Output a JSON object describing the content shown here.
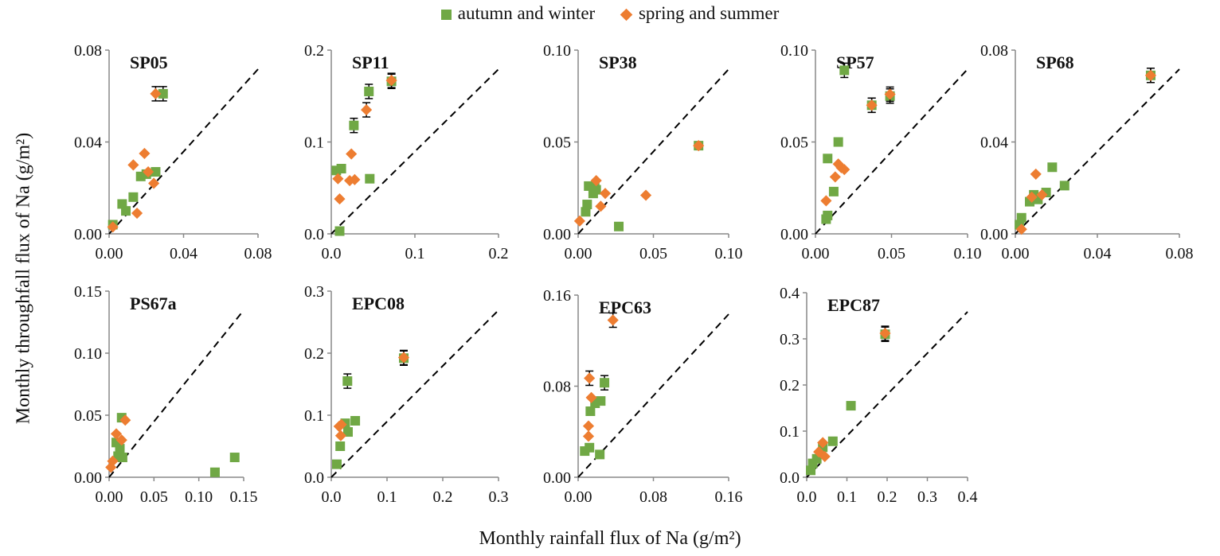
{
  "legend": {
    "autumn": "autumn and winter",
    "spring": "spring and summer"
  },
  "ylabel": "Monthly throughfall flux of Na (g/m²)",
  "xlabel": "Monthly rainfall flux of Na (g/m²)",
  "colors": {
    "autumn": "#70a845",
    "spring": "#ed7d31",
    "reference_line": "#000000"
  },
  "chart_data": [
    {
      "type": "scatter",
      "title": "SP05",
      "xlim": [
        0,
        0.08
      ],
      "ylim": [
        0,
        0.08
      ],
      "xticks": [
        "0.00",
        "0.04",
        "0.08"
      ],
      "yticks": [
        "0.00",
        "0.04",
        "0.08"
      ],
      "reference_line": "1:1 dashed",
      "series": [
        {
          "name": "autumn and winter",
          "points": [
            [
              0.002,
              0.004
            ],
            [
              0.007,
              0.013
            ],
            [
              0.009,
              0.01
            ],
            [
              0.013,
              0.016
            ],
            [
              0.017,
              0.025
            ],
            [
              0.02,
              0.026
            ],
            [
              0.025,
              0.027
            ],
            [
              0.029,
              0.061
            ]
          ]
        },
        {
          "name": "spring and summer",
          "points": [
            [
              0.002,
              0.003
            ],
            [
              0.013,
              0.03
            ],
            [
              0.015,
              0.009
            ],
            [
              0.019,
              0.035
            ],
            [
              0.021,
              0.027
            ],
            [
              0.024,
              0.022
            ],
            [
              0.025,
              0.061
            ]
          ]
        }
      ]
    },
    {
      "type": "scatter",
      "title": "SP11",
      "xlim": [
        0,
        0.2
      ],
      "ylim": [
        0,
        0.2
      ],
      "xticks": [
        "0.0",
        "0.1",
        "0.2"
      ],
      "yticks": [
        "0.0",
        "0.1",
        "0.2"
      ],
      "reference_line": "1:1 dashed",
      "series": [
        {
          "name": "autumn and winter",
          "points": [
            [
              0.006,
              0.069
            ],
            [
              0.012,
              0.071
            ],
            [
              0.01,
              0.003
            ],
            [
              0.027,
              0.118
            ],
            [
              0.045,
              0.155
            ],
            [
              0.046,
              0.06
            ],
            [
              0.072,
              0.166
            ]
          ]
        },
        {
          "name": "spring and summer",
          "points": [
            [
              0.008,
              0.06
            ],
            [
              0.01,
              0.038
            ],
            [
              0.022,
              0.058
            ],
            [
              0.024,
              0.087
            ],
            [
              0.028,
              0.059
            ],
            [
              0.042,
              0.135
            ],
            [
              0.072,
              0.167
            ]
          ]
        }
      ]
    },
    {
      "type": "scatter",
      "title": "SP38",
      "xlim": [
        0,
        0.1
      ],
      "ylim": [
        0,
        0.1
      ],
      "xticks": [
        "0.00",
        "0.05",
        "0.10"
      ],
      "yticks": [
        "0.00",
        "0.05",
        "0.10"
      ],
      "reference_line": "1:1 dashed",
      "series": [
        {
          "name": "autumn and winter",
          "points": [
            [
              0.005,
              0.012
            ],
            [
              0.006,
              0.016
            ],
            [
              0.007,
              0.026
            ],
            [
              0.01,
              0.022
            ],
            [
              0.011,
              0.026
            ],
            [
              0.012,
              0.024
            ],
            [
              0.027,
              0.004
            ],
            [
              0.08,
              0.048
            ]
          ]
        },
        {
          "name": "spring and summer",
          "points": [
            [
              0.001,
              0.007
            ],
            [
              0.012,
              0.029
            ],
            [
              0.015,
              0.015
            ],
            [
              0.018,
              0.022
            ],
            [
              0.045,
              0.021
            ],
            [
              0.08,
              0.048
            ]
          ]
        }
      ]
    },
    {
      "type": "scatter",
      "title": "SP57",
      "xlim": [
        0,
        0.1
      ],
      "ylim": [
        0,
        0.1
      ],
      "xticks": [
        "0.00",
        "0.05",
        "0.10"
      ],
      "yticks": [
        "0.00",
        "0.05",
        "0.10"
      ],
      "reference_line": "1:1 dashed",
      "series": [
        {
          "name": "autumn and winter",
          "points": [
            [
              0.007,
              0.008
            ],
            [
              0.008,
              0.01
            ],
            [
              0.008,
              0.041
            ],
            [
              0.012,
              0.023
            ],
            [
              0.015,
              0.05
            ],
            [
              0.019,
              0.089
            ],
            [
              0.037,
              0.07
            ],
            [
              0.049,
              0.075
            ]
          ]
        },
        {
          "name": "spring and summer",
          "points": [
            [
              0.007,
              0.018
            ],
            [
              0.013,
              0.031
            ],
            [
              0.015,
              0.038
            ],
            [
              0.017,
              0.036
            ],
            [
              0.019,
              0.035
            ],
            [
              0.037,
              0.07
            ],
            [
              0.049,
              0.076
            ]
          ]
        }
      ]
    },
    {
      "type": "scatter",
      "title": "SP68",
      "xlim": [
        0,
        0.08
      ],
      "ylim": [
        0,
        0.08
      ],
      "xticks": [
        "0.00",
        "0.04",
        "0.08"
      ],
      "yticks": [
        "0.00",
        "0.04",
        "0.08"
      ],
      "reference_line": "1:1 dashed",
      "series": [
        {
          "name": "autumn and winter",
          "points": [
            [
              0.002,
              0.004
            ],
            [
              0.003,
              0.007
            ],
            [
              0.007,
              0.014
            ],
            [
              0.009,
              0.017
            ],
            [
              0.011,
              0.015
            ],
            [
              0.015,
              0.018
            ],
            [
              0.018,
              0.029
            ],
            [
              0.024,
              0.021
            ],
            [
              0.066,
              0.069
            ]
          ]
        },
        {
          "name": "spring and summer",
          "points": [
            [
              0.003,
              0.002
            ],
            [
              0.008,
              0.016
            ],
            [
              0.01,
              0.026
            ],
            [
              0.013,
              0.017
            ],
            [
              0.066,
              0.069
            ]
          ]
        }
      ]
    },
    {
      "type": "scatter",
      "title": "PS67a",
      "xlim": [
        0,
        0.15
      ],
      "ylim": [
        0,
        0.15
      ],
      "xticks": [
        "0.00",
        "0.05",
        "0.10",
        "0.15"
      ],
      "yticks": [
        "0.00",
        "0.05",
        "0.10",
        "0.15"
      ],
      "reference_line": "1:1 dashed",
      "series": [
        {
          "name": "autumn and winter",
          "points": [
            [
              0.008,
              0.028
            ],
            [
              0.01,
              0.017
            ],
            [
              0.012,
              0.023
            ],
            [
              0.014,
              0.048
            ],
            [
              0.015,
              0.016
            ],
            [
              0.118,
              0.004
            ],
            [
              0.14,
              0.016
            ]
          ]
        },
        {
          "name": "spring and summer",
          "points": [
            [
              0.002,
              0.008
            ],
            [
              0.004,
              0.013
            ],
            [
              0.008,
              0.035
            ],
            [
              0.014,
              0.03
            ],
            [
              0.018,
              0.046
            ]
          ]
        }
      ]
    },
    {
      "type": "scatter",
      "title": "EPC08",
      "xlim": [
        0,
        0.3
      ],
      "ylim": [
        0,
        0.3
      ],
      "xticks": [
        "0.0",
        "0.1",
        "0.2",
        "0.3"
      ],
      "yticks": [
        "0.0",
        "0.1",
        "0.2",
        "0.3"
      ],
      "reference_line": "1:1 dashed",
      "series": [
        {
          "name": "autumn and winter",
          "points": [
            [
              0.01,
              0.021
            ],
            [
              0.016,
              0.05
            ],
            [
              0.025,
              0.087
            ],
            [
              0.03,
              0.073
            ],
            [
              0.029,
              0.155
            ],
            [
              0.043,
              0.091
            ],
            [
              0.13,
              0.192
            ]
          ]
        },
        {
          "name": "spring and summer",
          "points": [
            [
              0.014,
              0.082
            ],
            [
              0.017,
              0.067
            ],
            [
              0.018,
              0.085
            ],
            [
              0.13,
              0.193
            ]
          ]
        }
      ]
    },
    {
      "type": "scatter",
      "title": "EPC63",
      "xlim": [
        0,
        0.16
      ],
      "ylim": [
        0,
        0.16
      ],
      "xticks": [
        "0.00",
        "0.08",
        "0.16"
      ],
      "yticks": [
        "0.00",
        "0.08",
        "0.16"
      ],
      "reference_line": "1:1 dashed",
      "series": [
        {
          "name": "autumn and winter",
          "points": [
            [
              0.007,
              0.023
            ],
            [
              0.012,
              0.026
            ],
            [
              0.013,
              0.058
            ],
            [
              0.018,
              0.065
            ],
            [
              0.024,
              0.067
            ],
            [
              0.023,
              0.02
            ],
            [
              0.028,
              0.083
            ]
          ]
        },
        {
          "name": "spring and summer",
          "points": [
            [
              0.011,
              0.036
            ],
            [
              0.011,
              0.045
            ],
            [
              0.012,
              0.087
            ],
            [
              0.014,
              0.07
            ],
            [
              0.037,
              0.138
            ]
          ]
        }
      ]
    },
    {
      "type": "scatter",
      "title": "EPC87",
      "xlim": [
        0,
        0.4
      ],
      "ylim": [
        0,
        0.4
      ],
      "xticks": [
        "0.0",
        "0.1",
        "0.2",
        "0.3",
        "0.4"
      ],
      "yticks": [
        "0.0",
        "0.1",
        "0.2",
        "0.3",
        "0.4"
      ],
      "reference_line": "1:1 dashed",
      "series": [
        {
          "name": "autumn and winter",
          "points": [
            [
              0.01,
              0.015
            ],
            [
              0.015,
              0.03
            ],
            [
              0.025,
              0.04
            ],
            [
              0.04,
              0.065
            ],
            [
              0.065,
              0.078
            ],
            [
              0.11,
              0.155
            ],
            [
              0.195,
              0.31
            ]
          ]
        },
        {
          "name": "spring and summer",
          "points": [
            [
              0.03,
              0.055
            ],
            [
              0.04,
              0.075
            ],
            [
              0.045,
              0.045
            ],
            [
              0.195,
              0.312
            ]
          ]
        }
      ]
    }
  ]
}
